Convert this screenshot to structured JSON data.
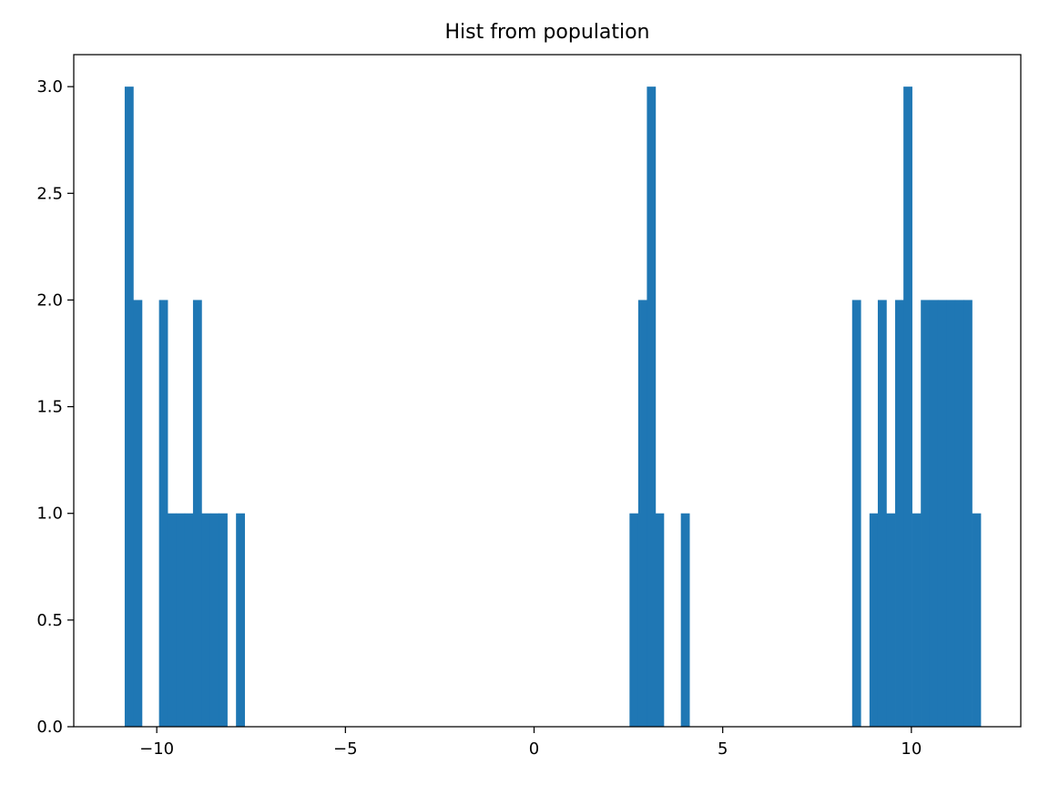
{
  "chart_data": {
    "type": "bar",
    "title": "Hist from population",
    "xlabel": "",
    "ylabel": "",
    "xlim": [
      -12.2,
      12.9
    ],
    "ylim": [
      0,
      3.15
    ],
    "grid": false,
    "legend": "none",
    "bar_color": "#1f77b4",
    "x_ticks": [
      -10,
      -5,
      0,
      5,
      10
    ],
    "x_tick_labels": [
      "−10",
      "−5",
      "0",
      "5",
      "10"
    ],
    "y_ticks": [
      0.0,
      0.5,
      1.0,
      1.5,
      2.0,
      2.5,
      3.0
    ],
    "y_tick_labels": [
      "0.0",
      "0.5",
      "1.0",
      "1.5",
      "2.0",
      "2.5",
      "3.0"
    ],
    "bin_width": 0.227,
    "bins": [
      {
        "x": -10.85,
        "value": 3
      },
      {
        "x": -10.62,
        "value": 2
      },
      {
        "x": -9.94,
        "value": 2
      },
      {
        "x": -9.72,
        "value": 1
      },
      {
        "x": -9.49,
        "value": 1
      },
      {
        "x": -9.26,
        "value": 1
      },
      {
        "x": -9.04,
        "value": 2
      },
      {
        "x": -8.81,
        "value": 1
      },
      {
        "x": -8.58,
        "value": 1
      },
      {
        "x": -8.36,
        "value": 1
      },
      {
        "x": -7.9,
        "value": 1
      },
      {
        "x": 2.53,
        "value": 1
      },
      {
        "x": 2.76,
        "value": 2
      },
      {
        "x": 2.99,
        "value": 3
      },
      {
        "x": 3.21,
        "value": 1
      },
      {
        "x": 3.89,
        "value": 1
      },
      {
        "x": 8.43,
        "value": 2
      },
      {
        "x": 8.89,
        "value": 1
      },
      {
        "x": 9.11,
        "value": 2
      },
      {
        "x": 9.34,
        "value": 1
      },
      {
        "x": 9.57,
        "value": 2
      },
      {
        "x": 9.79,
        "value": 3
      },
      {
        "x": 10.02,
        "value": 1
      },
      {
        "x": 10.25,
        "value": 2
      },
      {
        "x": 10.48,
        "value": 2
      },
      {
        "x": 10.7,
        "value": 2
      },
      {
        "x": 10.93,
        "value": 2
      },
      {
        "x": 11.16,
        "value": 2
      },
      {
        "x": 11.38,
        "value": 2
      },
      {
        "x": 11.61,
        "value": 1
      }
    ]
  }
}
